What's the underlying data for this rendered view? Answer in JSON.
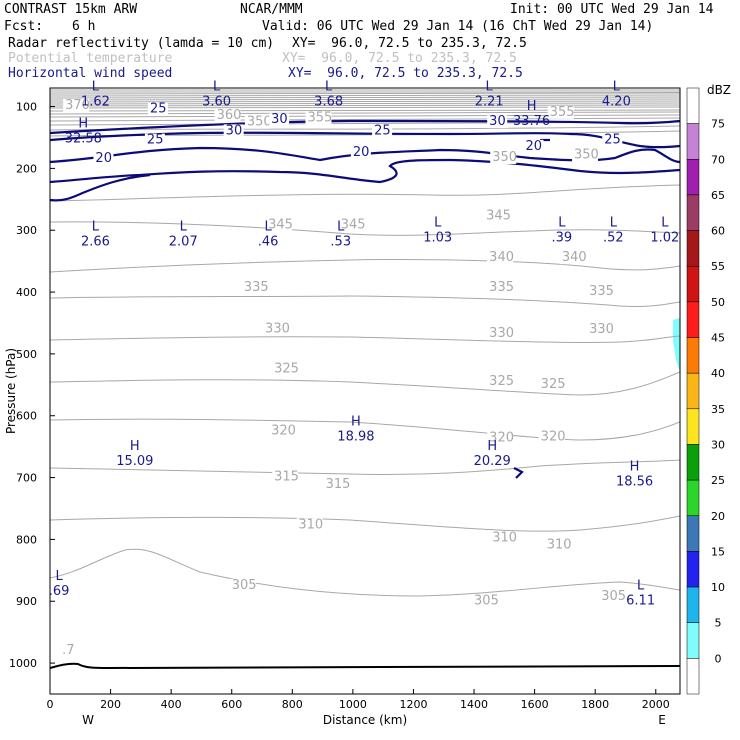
{
  "header": {
    "model": "CONTRAST 15km ARW",
    "center": "NCAR/MMM",
    "init": "Init: 00 UTC Wed 29 Jan 14",
    "fcst_label": "Fcst:",
    "fcst_value": "6 h",
    "valid": "Valid: 06 UTC Wed 29 Jan 14 (16 ChT Wed 29 Jan 14)",
    "fields": [
      {
        "name": "Radar reflectivity (lamda = 10 cm)",
        "xy": "XY=  96.0, 72.5 to 235.3, 72.5",
        "color": "#000000"
      },
      {
        "name": "Potential temperature",
        "xy": "XY=  96.0, 72.5 to 235.3, 72.5",
        "color": "#c0c0c0"
      },
      {
        "name": "Horizontal wind speed",
        "xy": "XY=  96.0, 72.5 to 235.3, 72.5",
        "color": "#1a1a8c"
      }
    ]
  },
  "chart_data": {
    "type": "cross-section contour",
    "xlabel": "Distance (km)",
    "ylabel": "Pressure (hPa)",
    "xlim": [
      0,
      2080
    ],
    "ylim": [
      1050,
      70
    ],
    "x_ticks": [
      0,
      200,
      400,
      600,
      800,
      1000,
      1200,
      1400,
      1600,
      1800,
      2000
    ],
    "y_ticks": [
      100,
      200,
      300,
      400,
      500,
      600,
      700,
      800,
      900,
      1000
    ],
    "end_labels": {
      "left": "W",
      "right": "E"
    },
    "wind_speed_contours": [
      {
        "value": "20",
        "x": 1000,
        "y": 180
      },
      {
        "value": "20",
        "x": 1570,
        "y": 170
      },
      {
        "value": "20",
        "x": 150,
        "y": 190
      },
      {
        "value": "25",
        "x": 320,
        "y": 160
      },
      {
        "value": "25",
        "x": 1070,
        "y": 145
      },
      {
        "value": "25",
        "x": 1830,
        "y": 160
      },
      {
        "value": "25",
        "x": 330,
        "y": 110
      },
      {
        "value": "30",
        "x": 580,
        "y": 145
      },
      {
        "value": "30",
        "x": 730,
        "y": 127
      },
      {
        "value": "30",
        "x": 1450,
        "y": 130
      }
    ],
    "theta_contours": [
      {
        "value": "370",
        "x": 50,
        "y": 104
      },
      {
        "value": "360",
        "x": 550,
        "y": 120
      },
      {
        "value": "355",
        "x": 850,
        "y": 124
      },
      {
        "value": "350",
        "x": 650,
        "y": 131
      },
      {
        "value": "355",
        "x": 1650,
        "y": 115
      },
      {
        "value": "350",
        "x": 1460,
        "y": 188
      },
      {
        "value": "350",
        "x": 1730,
        "y": 184
      },
      {
        "value": "345",
        "x": 720,
        "y": 297
      },
      {
        "value": "345",
        "x": 960,
        "y": 297
      },
      {
        "value": "345",
        "x": 1440,
        "y": 283
      },
      {
        "value": "340",
        "x": 1450,
        "y": 350
      },
      {
        "value": "340",
        "x": 1690,
        "y": 350
      },
      {
        "value": "335",
        "x": 640,
        "y": 398
      },
      {
        "value": "335",
        "x": 1450,
        "y": 398
      },
      {
        "value": "335",
        "x": 1780,
        "y": 405
      },
      {
        "value": "330",
        "x": 710,
        "y": 465
      },
      {
        "value": "330",
        "x": 1450,
        "y": 473
      },
      {
        "value": "330",
        "x": 1780,
        "y": 466
      },
      {
        "value": "325",
        "x": 740,
        "y": 530
      },
      {
        "value": "325",
        "x": 1450,
        "y": 550
      },
      {
        "value": "325",
        "x": 1620,
        "y": 555
      },
      {
        "value": "320",
        "x": 730,
        "y": 630
      },
      {
        "value": "320",
        "x": 1450,
        "y": 642
      },
      {
        "value": "320",
        "x": 1620,
        "y": 640
      },
      {
        "value": "315",
        "x": 740,
        "y": 705
      },
      {
        "value": "315",
        "x": 910,
        "y": 717
      },
      {
        "value": "310",
        "x": 820,
        "y": 782
      },
      {
        "value": "310",
        "x": 1460,
        "y": 803
      },
      {
        "value": "310",
        "x": 1640,
        "y": 815
      },
      {
        "value": "305",
        "x": 600,
        "y": 880
      },
      {
        "value": "305",
        "x": 1400,
        "y": 905
      },
      {
        "value": "305",
        "x": 1820,
        "y": 898
      },
      {
        "value": ".7",
        "x": 40,
        "y": 985
      }
    ],
    "extrema": [
      {
        "kind": "L",
        "value": "1.62",
        "x": 150,
        "y": 98
      },
      {
        "kind": "L",
        "value": "3.60",
        "x": 550,
        "y": 98
      },
      {
        "kind": "L",
        "value": "3.68",
        "x": 920,
        "y": 98
      },
      {
        "kind": "L",
        "value": "2.21",
        "x": 1450,
        "y": 98
      },
      {
        "kind": "L",
        "value": "4.20",
        "x": 1870,
        "y": 98
      },
      {
        "kind": "H",
        "value": "32.58",
        "x": 110,
        "y": 158
      },
      {
        "kind": "H",
        "value": "33.76",
        "x": 1590,
        "y": 130
      },
      {
        "kind": "L",
        "value": "2.66",
        "x": 150,
        "y": 325
      },
      {
        "kind": "L",
        "value": "2.07",
        "x": 440,
        "y": 325
      },
      {
        "kind": "L",
        "value": ".46",
        "x": 720,
        "y": 325
      },
      {
        "kind": "L",
        "value": ".53",
        "x": 960,
        "y": 325
      },
      {
        "kind": "L",
        "value": "1.03",
        "x": 1280,
        "y": 318
      },
      {
        "kind": "L",
        "value": ".39",
        "x": 1690,
        "y": 318
      },
      {
        "kind": "L",
        "value": ".52",
        "x": 1860,
        "y": 318
      },
      {
        "kind": "L",
        "value": "1.02",
        "x": 2030,
        "y": 318
      },
      {
        "kind": "H",
        "value": "15.09",
        "x": 280,
        "y": 680
      },
      {
        "kind": "H",
        "value": "18.98",
        "x": 1010,
        "y": 640
      },
      {
        "kind": "H",
        "value": "20.29",
        "x": 1460,
        "y": 680
      },
      {
        "kind": "H",
        "value": "18.56",
        "x": 1930,
        "y": 713
      },
      {
        "kind": "L",
        "value": ".69",
        "x": 30,
        "y": 890
      },
      {
        "kind": "L",
        "value": "6.11",
        "x": 1950,
        "y": 905
      }
    ],
    "colorbar": {
      "unit": "dBZ",
      "levels": [
        "0",
        "5",
        "10",
        "15",
        "20",
        "25",
        "30",
        "35",
        "40",
        "45",
        "50",
        "55",
        "60",
        "65",
        "70",
        "75"
      ],
      "colors": [
        "#ffffff",
        "#7ffcfc",
        "#1eb4ee",
        "#2323f0",
        "#3b78b5",
        "#29d629",
        "#09a009",
        "#fce51f",
        "#fcb517",
        "#fc7b05",
        "#fc1d1d",
        "#cf1414",
        "#a51818",
        "#9c3c64",
        "#a01fb0",
        "#c682d4",
        "#ffffff"
      ]
    }
  }
}
